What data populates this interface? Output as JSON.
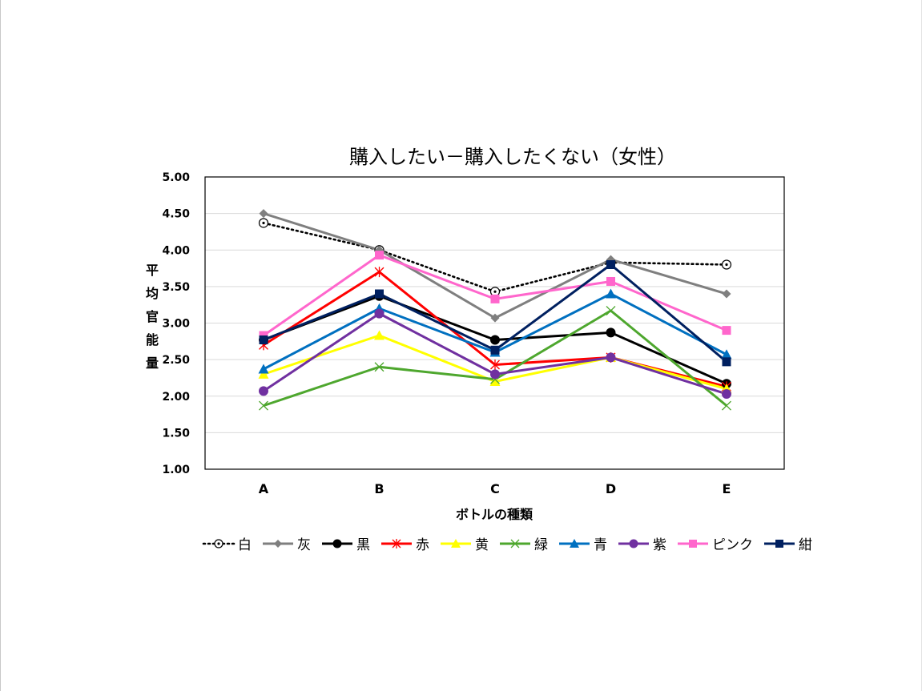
{
  "chart_data": {
    "type": "line",
    "title": "購入したい－購入したくない（女性）",
    "xlabel": "ボトルの種類",
    "ylabel": "平均官能量",
    "categories": [
      "A",
      "B",
      "C",
      "D",
      "E"
    ],
    "ylim": [
      1.0,
      5.0
    ],
    "yticks": [
      "1.00",
      "1.50",
      "2.00",
      "2.50",
      "3.00",
      "3.50",
      "4.00",
      "4.50",
      "5.00"
    ],
    "grid": true,
    "legend_position": "bottom",
    "series": [
      {
        "name": "白",
        "color": "#000000",
        "marker": "circle-dot",
        "dash": "dotted",
        "values": [
          4.37,
          4.0,
          3.43,
          3.83,
          3.8
        ]
      },
      {
        "name": "灰",
        "color": "#7f7f7f",
        "marker": "diamond",
        "dash": "solid",
        "values": [
          4.5,
          4.0,
          3.07,
          3.87,
          3.4
        ]
      },
      {
        "name": "黒",
        "color": "#000000",
        "marker": "circle",
        "dash": "solid",
        "values": [
          2.77,
          3.37,
          2.77,
          2.87,
          2.17
        ]
      },
      {
        "name": "赤",
        "color": "#ff0000",
        "marker": "star",
        "dash": "solid",
        "values": [
          2.7,
          3.7,
          2.43,
          2.53,
          2.13
        ]
      },
      {
        "name": "黄",
        "color": "#ffff00",
        "marker": "triangle",
        "dash": "solid",
        "values": [
          2.3,
          2.83,
          2.2,
          2.53,
          2.1
        ]
      },
      {
        "name": "緑",
        "color": "#4ea72e",
        "marker": "x",
        "dash": "solid",
        "values": [
          1.87,
          2.4,
          2.23,
          3.17,
          1.87
        ]
      },
      {
        "name": "青",
        "color": "#0070c0",
        "marker": "triangle",
        "dash": "solid",
        "values": [
          2.37,
          3.2,
          2.6,
          3.4,
          2.57
        ]
      },
      {
        "name": "紫",
        "color": "#7030a0",
        "marker": "circle",
        "dash": "solid",
        "values": [
          2.07,
          3.13,
          2.3,
          2.53,
          2.03
        ]
      },
      {
        "name": "ピンク",
        "color": "#ff66cc",
        "marker": "square",
        "dash": "solid",
        "values": [
          2.83,
          3.93,
          3.33,
          3.57,
          2.9
        ]
      },
      {
        "name": "紺",
        "color": "#002060",
        "marker": "square",
        "dash": "solid",
        "values": [
          2.77,
          3.4,
          2.63,
          3.8,
          2.47
        ]
      }
    ]
  }
}
